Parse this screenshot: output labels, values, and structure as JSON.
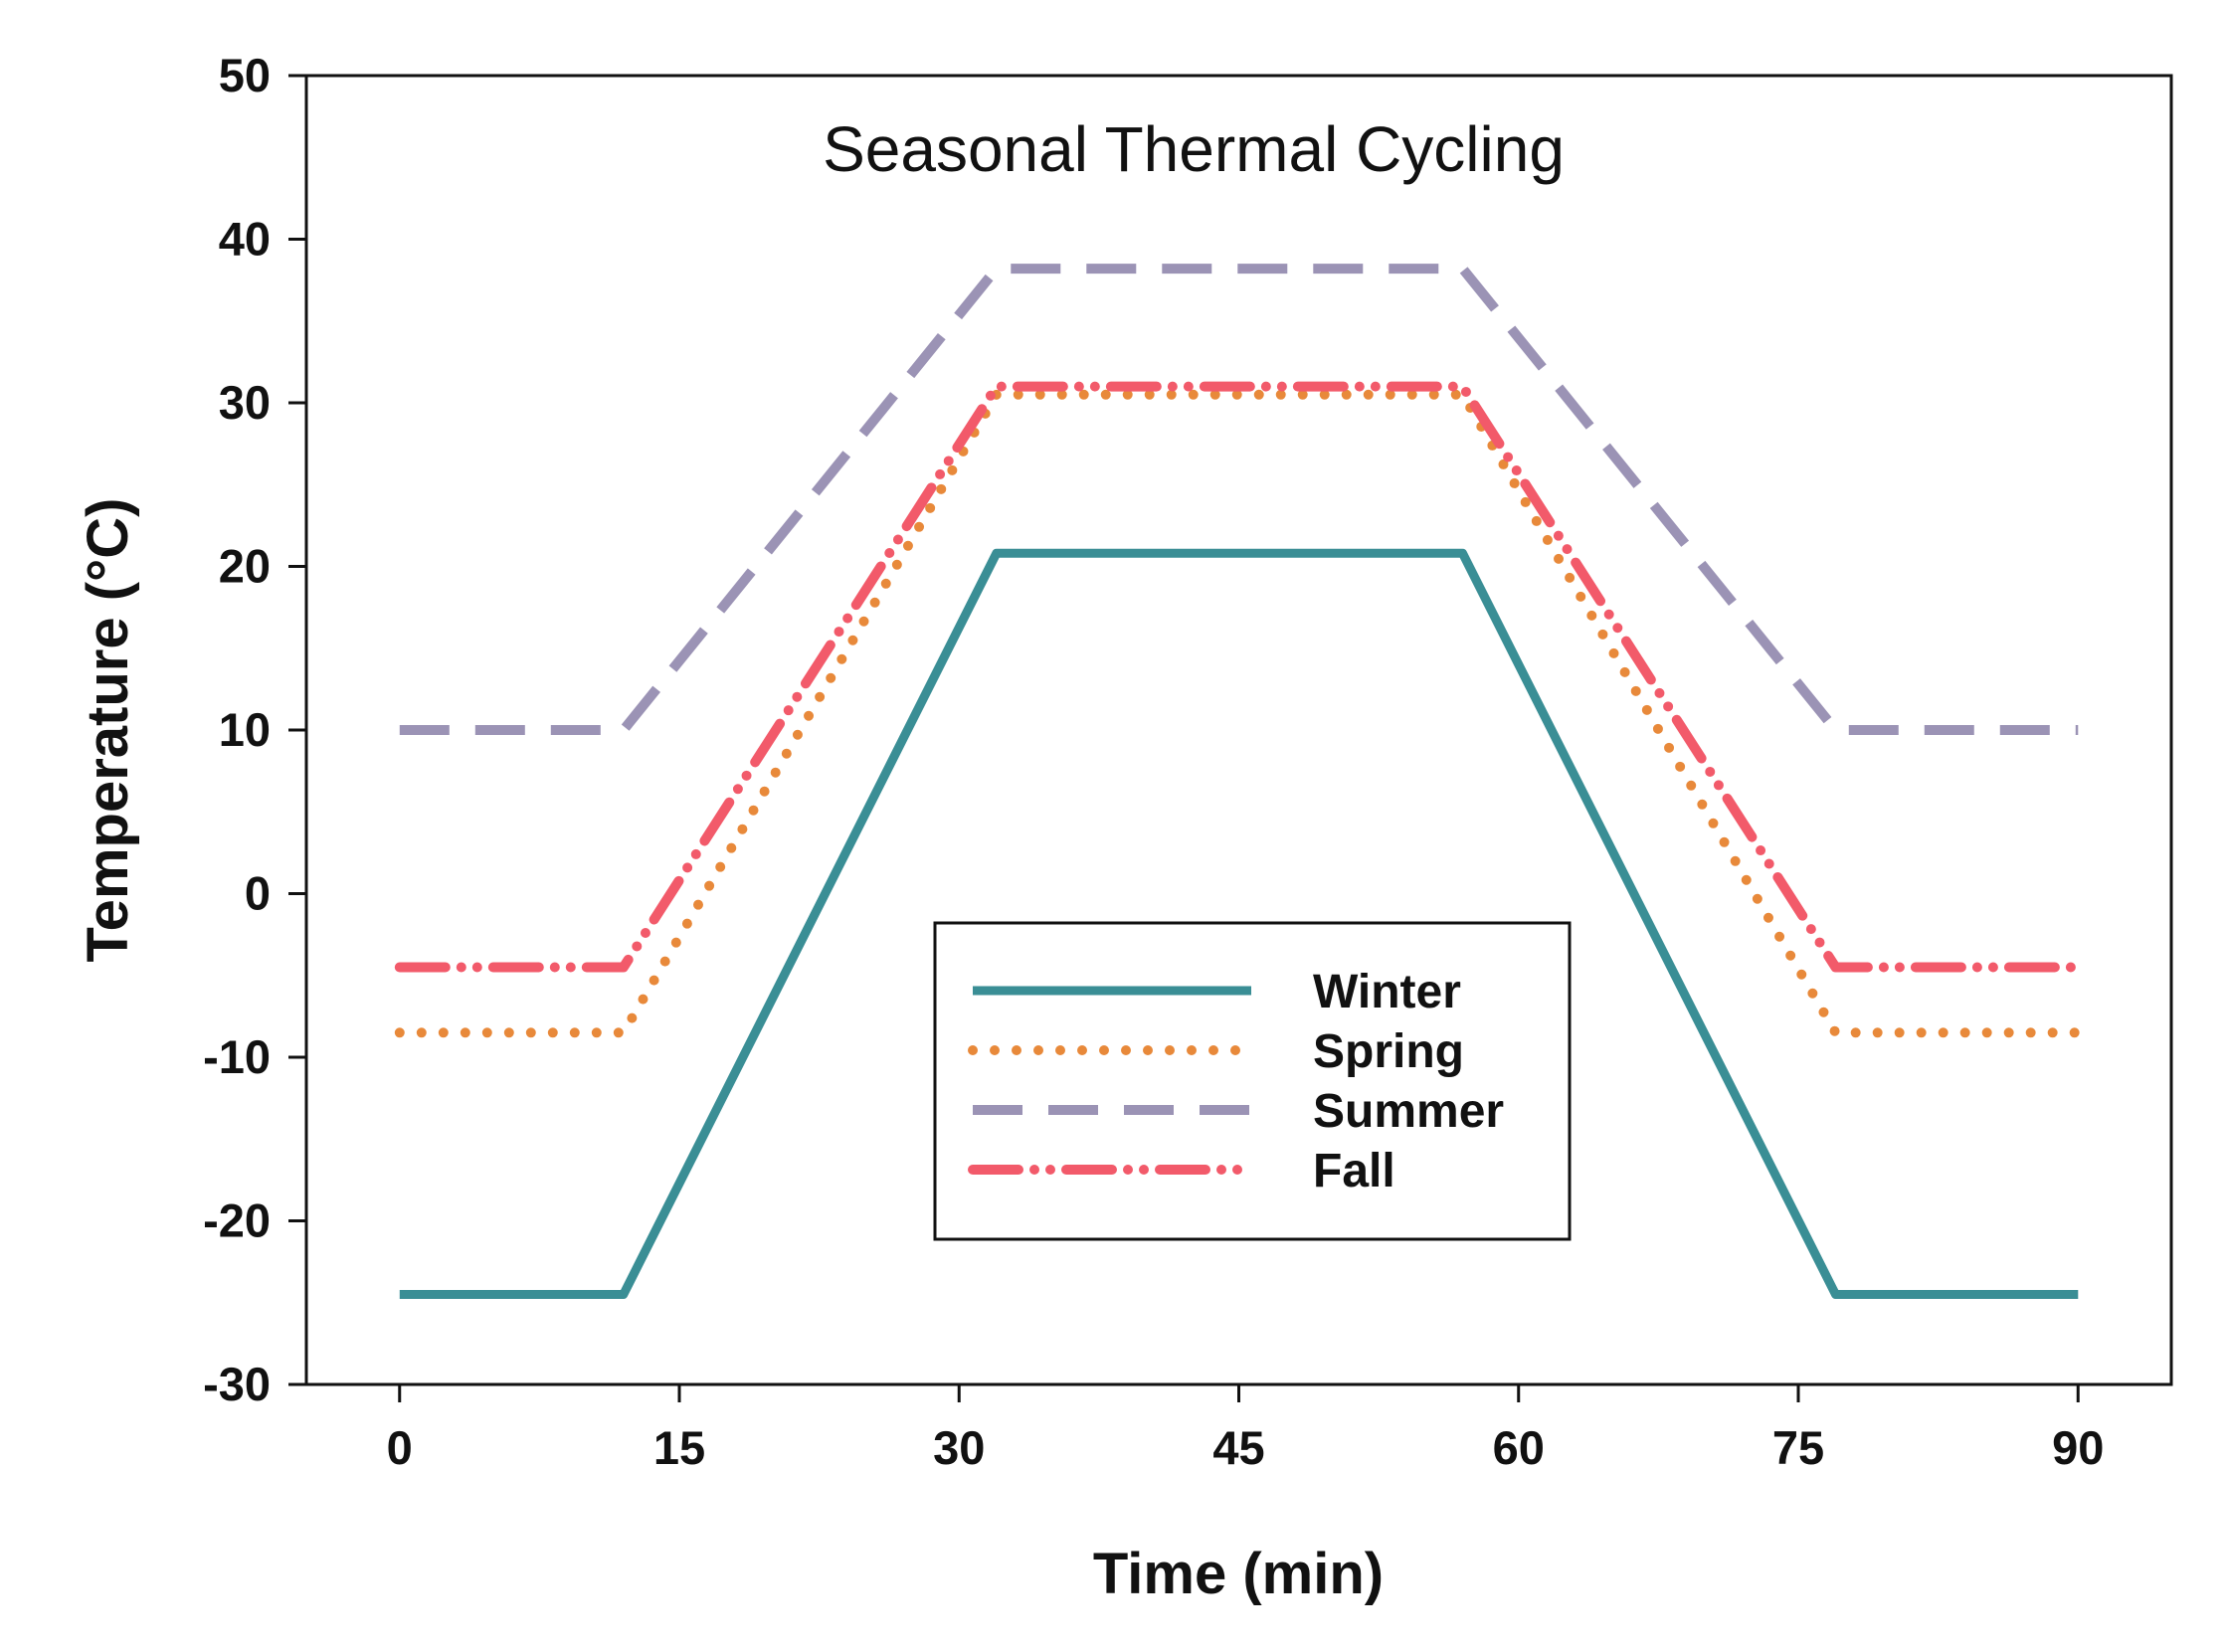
{
  "chart_data": {
    "type": "line",
    "title": "Seasonal Thermal Cycling",
    "xlabel": "Time (min)",
    "ylabel": "Temperature (°C)",
    "xlim": [
      -5,
      95
    ],
    "ylim": [
      -30,
      50
    ],
    "xticks": [
      0,
      15,
      30,
      45,
      60,
      75,
      90
    ],
    "yticks": [
      -30,
      -20,
      -10,
      0,
      10,
      20,
      30,
      40,
      50
    ],
    "legend_position": "lower-center",
    "grid": false,
    "series": [
      {
        "name": "Winter",
        "color": "#3a8e95",
        "style": "solid",
        "x": [
          0,
          12,
          32,
          57,
          77,
          90
        ],
        "y": [
          -24.5,
          -24.5,
          20.8,
          20.8,
          -24.5,
          -24.5
        ]
      },
      {
        "name": "Spring",
        "color": "#e8893a",
        "style": "dotted",
        "x": [
          0,
          12,
          32,
          57,
          77,
          90
        ],
        "y": [
          -8.5,
          -8.5,
          30.5,
          30.5,
          -8.5,
          -8.5
        ]
      },
      {
        "name": "Summer",
        "color": "#9b93b5",
        "style": "dashed",
        "x": [
          0,
          12,
          32,
          57,
          77,
          90
        ],
        "y": [
          10,
          10,
          38.2,
          38.2,
          10,
          10
        ]
      },
      {
        "name": "Fall",
        "color": "#f25a6a",
        "style": "dash-dot-dot",
        "x": [
          0,
          12,
          32,
          57,
          77,
          90
        ],
        "y": [
          -4.5,
          -4.5,
          31,
          31,
          -4.5,
          -4.5
        ]
      }
    ]
  }
}
